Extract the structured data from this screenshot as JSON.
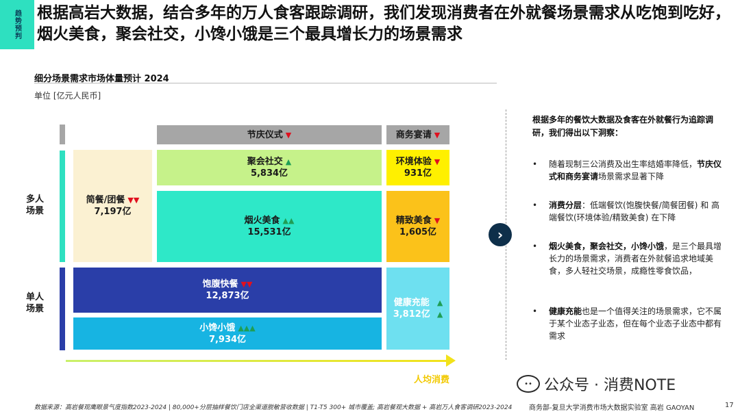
{
  "header": {
    "tag": "趋势预判",
    "title": "根据高岩大数据，结合多年的万人食客跟踪调研，我们发现消费者在外就餐场景需求从吃饱到吃好，烟火美食，聚会社交，小馋小饿是三个最具增长力的场景需求"
  },
  "chart": {
    "title": "细分场景需求市场体量预计 2024",
    "unit": "单位 [亿元人民币]",
    "group_multi": "多人\n场景",
    "group_single": "单人\n场景",
    "x_axis_label": "人均消费",
    "colors": {
      "multi_bar": "#2ee0c0",
      "single_bar": "#2a3ea8",
      "header_gray": "#a6a6a6",
      "jianchan": "#fbf1d2",
      "juhui": "#c6f28a",
      "yanhuo": "#2ee8c8",
      "huanjing": "#fff000",
      "jingzhi": "#fbc21a",
      "baofu": "#2a3ea8",
      "xiaochan": "#17b4e2",
      "jiankang": "#6ee0f0"
    }
  },
  "chart_data": {
    "type": "table",
    "title": "细分场景需求市场体量预计 2024",
    "unit": "单位 [亿元人民币]",
    "x_axis": "人均消费",
    "headers": [
      {
        "label": "节庆仪式",
        "trend": "down",
        "arrows": 1
      },
      {
        "label": "商务宴请",
        "trend": "down",
        "arrows": 1
      }
    ],
    "segments": [
      {
        "name": "简餐/团餐",
        "value": 7197,
        "value_label": "7,197亿",
        "trend": "down",
        "arrows": 2,
        "group": "多人场景"
      },
      {
        "name": "聚会社交",
        "value": 5834,
        "value_label": "5,834亿",
        "trend": "up",
        "arrows": 1,
        "group": "多人场景"
      },
      {
        "name": "烟火美食",
        "value": 15531,
        "value_label": "15,531亿",
        "trend": "up",
        "arrows": 2,
        "group": "多人场景"
      },
      {
        "name": "环境体验",
        "value": 931,
        "value_label": "931亿",
        "trend": "down",
        "arrows": 1,
        "group": "多人场景"
      },
      {
        "name": "精致美食",
        "value": 1605,
        "value_label": "1,605亿",
        "trend": "down",
        "arrows": 1,
        "group": "多人场景"
      },
      {
        "name": "饱腹快餐",
        "value": 12873,
        "value_label": "12,873亿",
        "trend": "down",
        "arrows": 2,
        "group": "单人场景"
      },
      {
        "name": "小馋小饿",
        "value": 7934,
        "value_label": "7,934亿",
        "trend": "up",
        "arrows": 3,
        "group": "单人场景"
      },
      {
        "name": "健康充能",
        "value": 3812,
        "value_label": "3,812亿",
        "trend": "up",
        "arrows": 2,
        "group": "单人场景"
      }
    ]
  },
  "insights": {
    "intro": "根据多年的餐饮大数据及食客在外就餐行为追踪调研，我们得出以下洞察：",
    "b1_pre": "随着现制三公消费及出生率结婚率降低，",
    "b1_bold": "节庆仪式和商务宴请",
    "b1_post": "场景需求显著下降",
    "b2_bold": "消费分层",
    "b2_post": "：低端餐饮(饱腹快餐/简餐团餐) 和 高端餐饮(环境体验/精致美食) 在下降",
    "b3_bold": "烟火美食，聚会社交，小馋小饿",
    "b3_post": "，是三个最具增长力的场景需求，消费者在外就餐追求地域美食，多人轻社交场景，成瘾性零食饮品，",
    "b4_bold": "健康充能",
    "b4_post": "也是一个值得关注的场景需求，它不属于某个业态子业态，但在每个业态子业态中都有需求"
  },
  "footer": {
    "source": "数据来源：高岩餐观鹰眼景气度指数2023-2024 | 80,000+分层抽样餐饮门店全渠道脱敏营收数据 | T1-T5 300+ 城市覆盖; 高岩餐观大数据 + 高岩万人食客调研2023-2024",
    "org": "商务部-复旦大学消费市场大数据实验室    高岩 GAOYAN",
    "page": "17",
    "watermark": "公众号 · 消费NOTE"
  }
}
